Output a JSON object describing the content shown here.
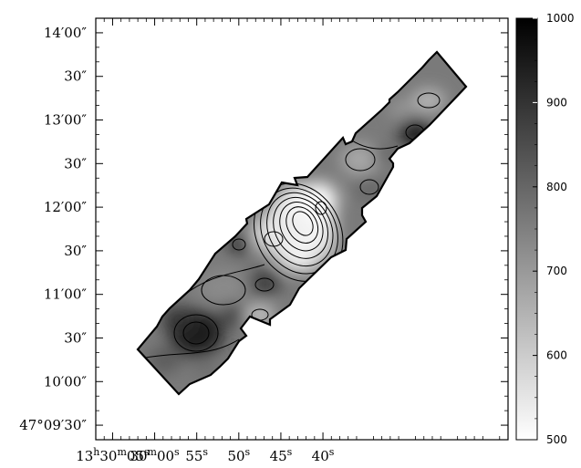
{
  "chart_data": {
    "type": "heatmap",
    "title": "",
    "xlabel": "",
    "ylabel": "",
    "x_axis": {
      "coordinate": "right ascension",
      "range_s": [
        67,
        18
      ],
      "ticks": [
        {
          "value": 65,
          "label": "13h30m05s"
        },
        {
          "value": 60,
          "label": "30m00s"
        },
        {
          "value": 55,
          "label": "55s"
        },
        {
          "value": 50,
          "label": "50s"
        },
        {
          "value": 45,
          "label": "45s"
        },
        {
          "value": 40,
          "label": "40s"
        }
      ]
    },
    "y_axis": {
      "coordinate": "declination",
      "range_arcsec": [
        -10,
        280
      ],
      "ticks": [
        {
          "value": 0,
          "label": "47°09′30″"
        },
        {
          "value": 30,
          "label": "10′00″"
        },
        {
          "value": 60,
          "label": "30″"
        },
        {
          "value": 90,
          "label": "11′00″"
        },
        {
          "value": 120,
          "label": "30″"
        },
        {
          "value": 150,
          "label": "12′00″"
        },
        {
          "value": 180,
          "label": "30″"
        },
        {
          "value": 210,
          "label": "13′00″"
        },
        {
          "value": 240,
          "label": "30″"
        },
        {
          "value": 270,
          "label": "14′00″"
        }
      ]
    },
    "colorbar": {
      "range": [
        500,
        1000
      ],
      "colormap": "grayscale, white=low, black=high",
      "ticks": [
        {
          "value": 500,
          "label": "500"
        },
        {
          "value": 600,
          "label": "600"
        },
        {
          "value": 700,
          "label": "700"
        },
        {
          "value": 800,
          "label": "800"
        },
        {
          "value": 900,
          "label": "900"
        },
        {
          "value": 1000,
          "label": "1000"
        }
      ]
    },
    "contours": "yes",
    "grid": false,
    "legend": "colorbar right",
    "colors": {
      "background": "#ffffff",
      "high": "#000000",
      "low": "#ffffff"
    }
  }
}
